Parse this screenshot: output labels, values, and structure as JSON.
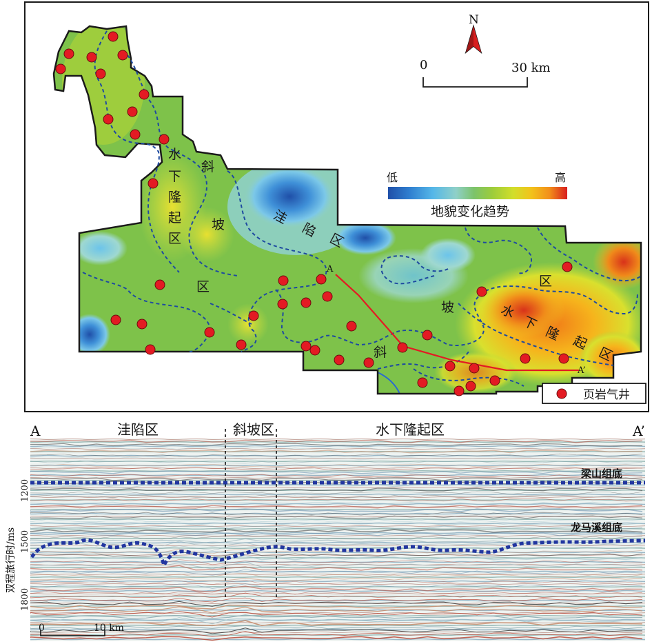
{
  "map": {
    "north_label": "N",
    "scale_zero": "0",
    "scale_end": "30 km",
    "colorbar": {
      "low": "低",
      "high": "高",
      "title": "地貌变化趋势",
      "colors": [
        "#1f4fa8",
        "#2f7fd0",
        "#55b7e8",
        "#8fd0c8",
        "#7cc36a",
        "#9ccc3c",
        "#d2de2a",
        "#f2c21a",
        "#f2901a",
        "#e84a1e",
        "#d81e1e"
      ]
    },
    "legend": {
      "well_label": "页岩气井",
      "well_color": "#e31b23"
    },
    "zones": {
      "uplift_west": [
        "水",
        "下",
        "隆",
        "起",
        "区"
      ],
      "slope_west": [
        "斜",
        "坡",
        "区"
      ],
      "depression": [
        "洼",
        "陷",
        "区"
      ],
      "slope_east": [
        "斜",
        "坡",
        "区"
      ],
      "uplift_east": [
        "水",
        "下",
        "隆",
        "起",
        "区"
      ]
    },
    "section_line": {
      "start": "A",
      "end": "A’",
      "color": "#e31b23"
    }
  },
  "section": {
    "left_end": "A",
    "right_end": "A’",
    "zone_labels": [
      "洼陷区",
      "斜坡区",
      "水下隆起区"
    ],
    "ylabel": "双程旅行时/ms",
    "y_ticks": [
      "1200",
      "1500",
      "1800"
    ],
    "horizons": [
      {
        "name": "梁山组底",
        "color": "#2236a0"
      },
      {
        "name": "龙马溪组底",
        "color": "#2236a0"
      }
    ],
    "scale_zero": "0",
    "scale_end": "10 km"
  }
}
